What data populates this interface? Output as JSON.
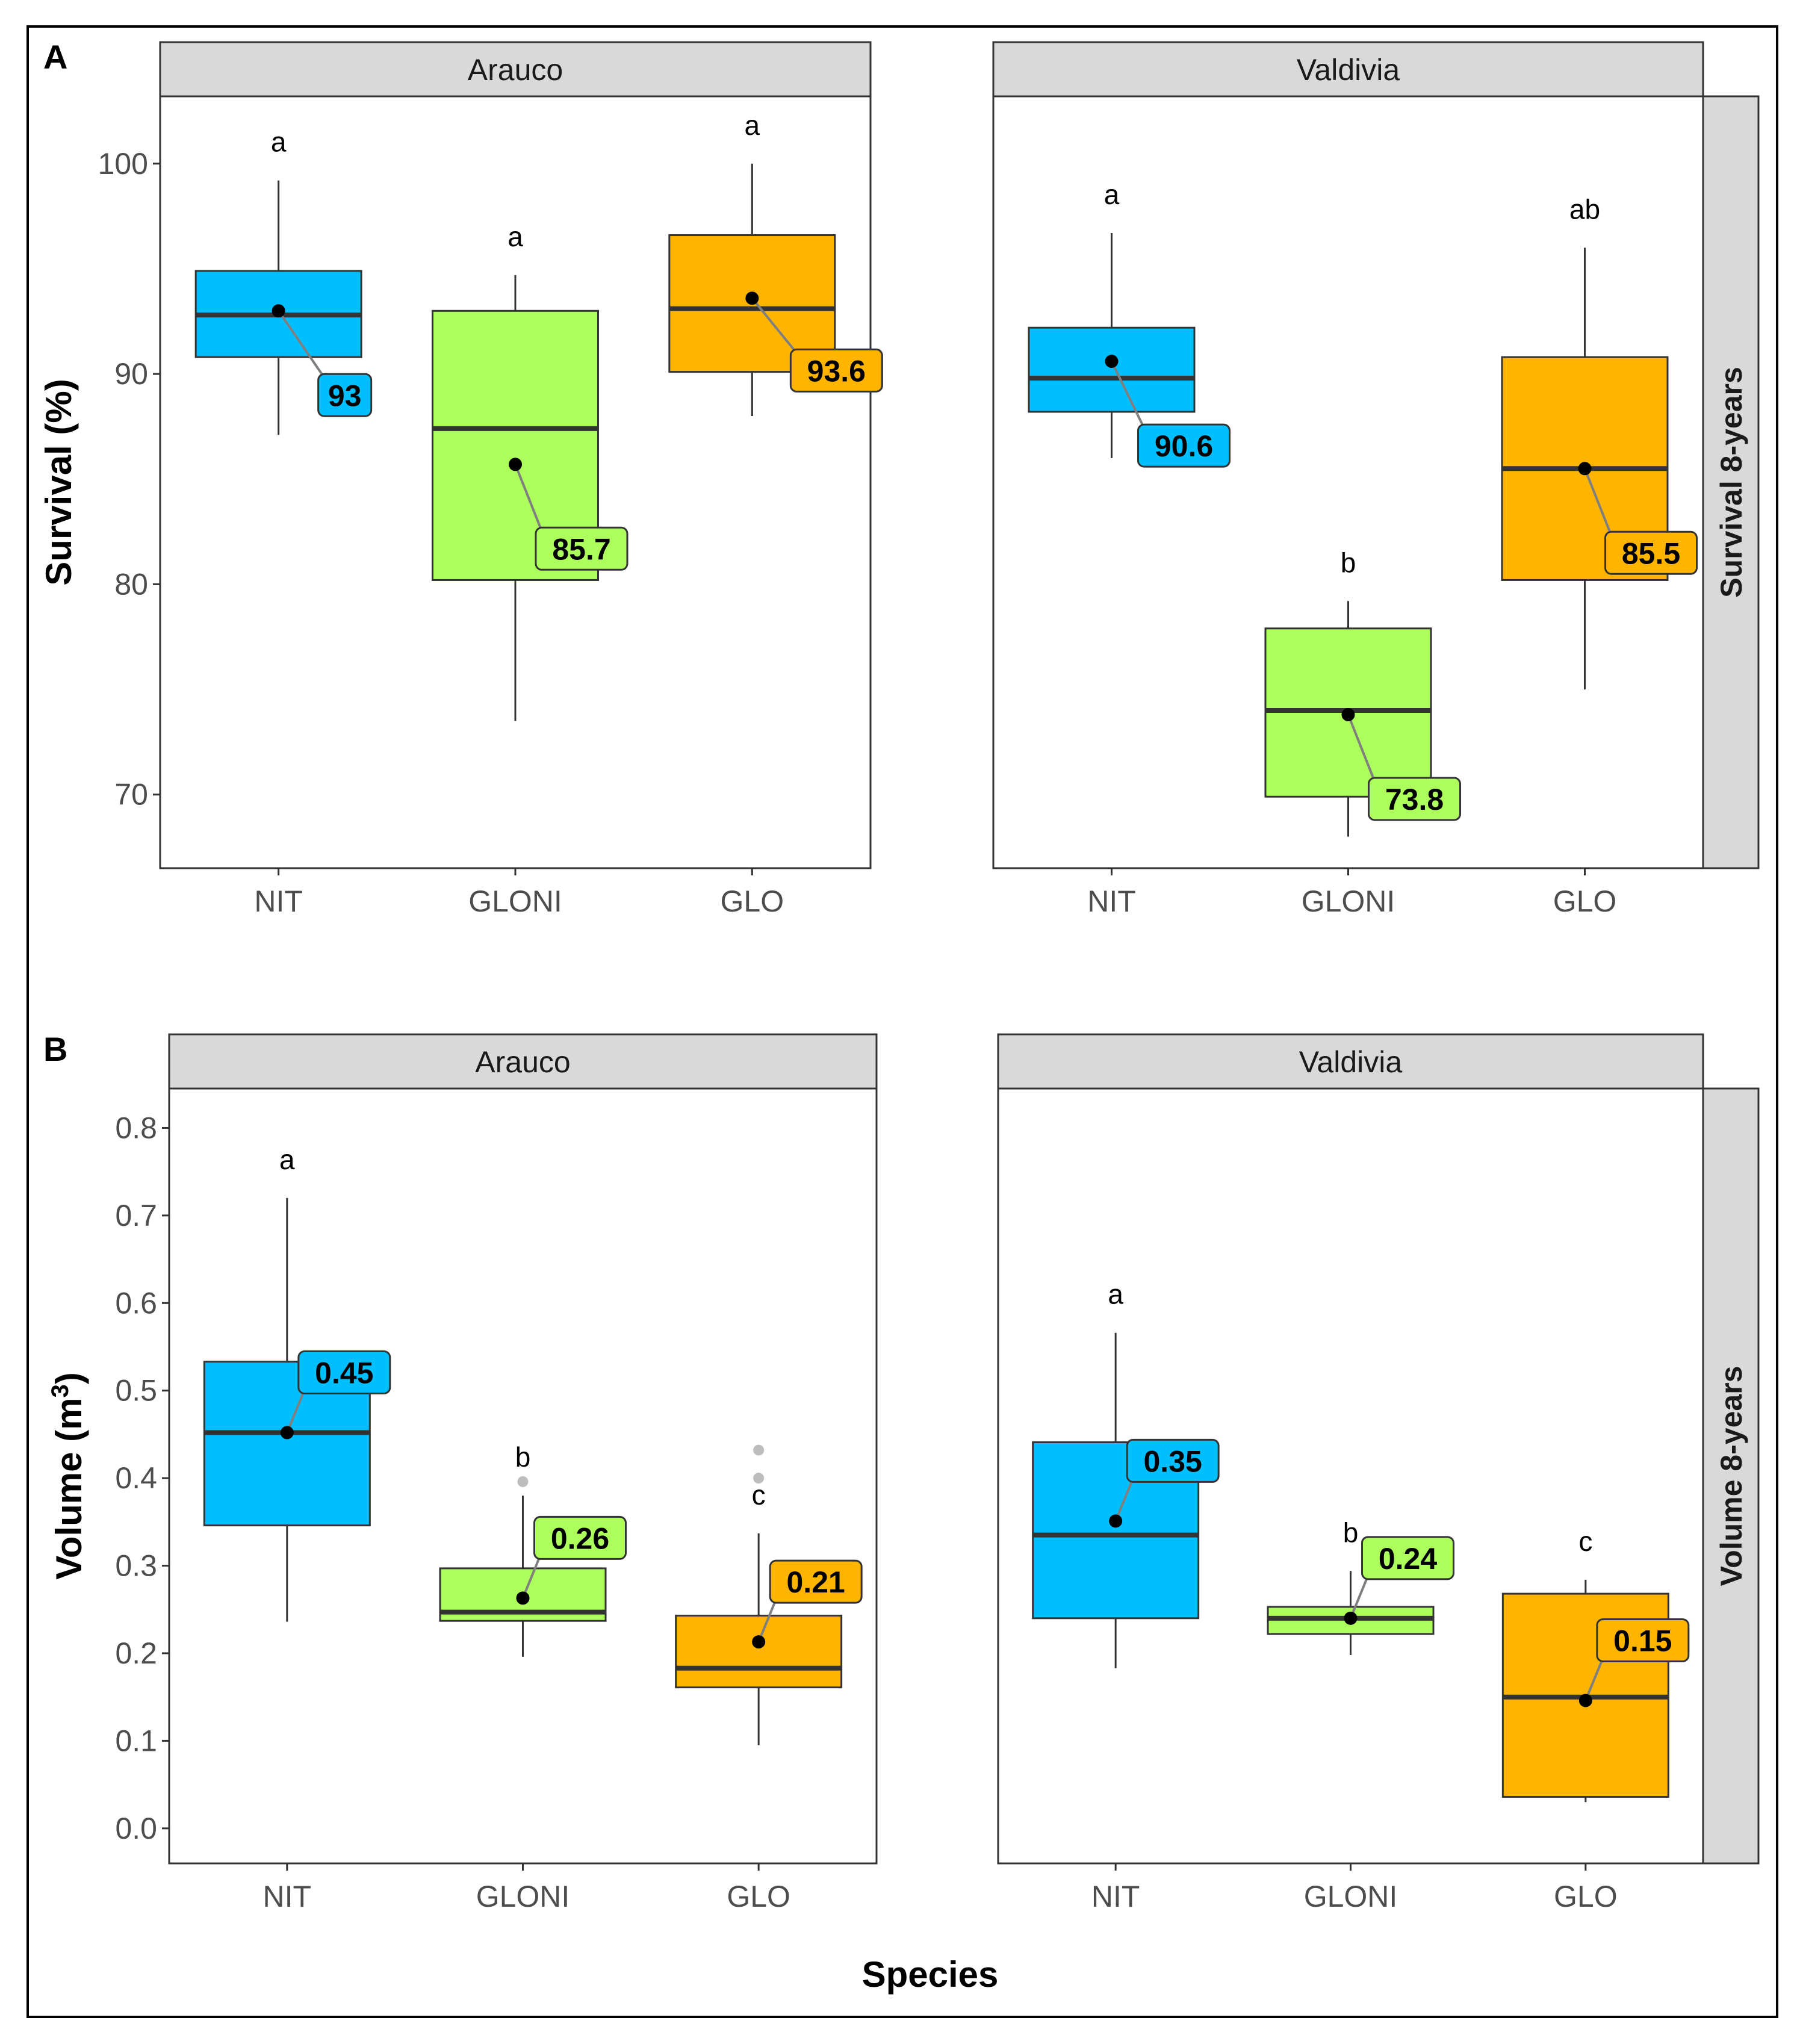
{
  "figure": {
    "x_axis_title": "Species"
  },
  "chart_data": [
    {
      "type": "boxplot",
      "panel": "A",
      "facet": "Arauco",
      "row_strip": "",
      "ylabel": "Survival (%)",
      "ylim": [
        66.5,
        103.2
      ],
      "yticks": [
        70,
        80,
        90,
        100
      ],
      "categories": [
        "NIT",
        "GLONI",
        "GLO"
      ],
      "colors": [
        "#00BFFF",
        "#ADFF5C",
        "#FFB500"
      ],
      "boxes": [
        {
          "whisker_low": 87.1,
          "q1": 90.8,
          "median": 92.8,
          "q3": 94.9,
          "whisker_high": 99.2,
          "outliers": [],
          "mean": 93.0,
          "mean_label": "93",
          "sig": "a"
        },
        {
          "whisker_low": 73.5,
          "q1": 80.2,
          "median": 87.4,
          "q3": 93.0,
          "whisker_high": 94.7,
          "outliers": [],
          "mean": 85.7,
          "mean_label": "85.7",
          "sig": "a"
        },
        {
          "whisker_low": 88.0,
          "q1": 90.1,
          "median": 93.1,
          "q3": 96.6,
          "whisker_high": 100.0,
          "outliers": [],
          "mean": 93.6,
          "mean_label": "93.6",
          "sig": "a"
        }
      ]
    },
    {
      "type": "boxplot",
      "panel": "",
      "facet": "Valdivia",
      "row_strip": "Survival 8-years",
      "ylabel": "",
      "ylim": [
        66.5,
        103.2
      ],
      "yticks": [],
      "categories": [
        "NIT",
        "GLONI",
        "GLO"
      ],
      "colors": [
        "#00BFFF",
        "#ADFF5C",
        "#FFB500"
      ],
      "boxes": [
        {
          "whisker_low": 86.0,
          "q1": 88.2,
          "median": 89.8,
          "q3": 92.2,
          "whisker_high": 96.7,
          "outliers": [],
          "mean": 90.6,
          "mean_label": "90.6",
          "sig": "a"
        },
        {
          "whisker_low": 68.0,
          "q1": 69.9,
          "median": 74.0,
          "q3": 77.9,
          "whisker_high": 79.2,
          "outliers": [],
          "mean": 73.8,
          "mean_label": "73.8",
          "sig": "b"
        },
        {
          "whisker_low": 75.0,
          "q1": 80.2,
          "median": 85.5,
          "q3": 90.8,
          "whisker_high": 96.0,
          "outliers": [],
          "mean": 85.5,
          "mean_label": "85.5",
          "sig": "ab"
        }
      ]
    },
    {
      "type": "boxplot",
      "panel": "B",
      "facet": "Arauco",
      "row_strip": "",
      "ylabel": "Volume (m",
      "ylabel_sup": "3",
      "ylabel_end": ")",
      "ylim": [
        -0.04,
        0.845
      ],
      "yticks": [
        "0.0",
        "0.1",
        "0.2",
        "0.3",
        "0.4",
        "0.5",
        "0.6",
        "0.7",
        "0.8"
      ],
      "categories": [
        "NIT",
        "GLONI",
        "GLO"
      ],
      "colors": [
        "#00BFFF",
        "#ADFF5C",
        "#FFB500"
      ],
      "boxes": [
        {
          "whisker_low": 0.236,
          "q1": 0.346,
          "median": 0.452,
          "q3": 0.533,
          "whisker_high": 0.72,
          "outliers": [],
          "mean": 0.452,
          "mean_label": "0.45",
          "sig": "a"
        },
        {
          "whisker_low": 0.196,
          "q1": 0.237,
          "median": 0.247,
          "q3": 0.297,
          "whisker_high": 0.38,
          "outliers": [
            0.396
          ],
          "mean": 0.263,
          "mean_label": "0.26",
          "sig": "b"
        },
        {
          "whisker_low": 0.095,
          "q1": 0.161,
          "median": 0.183,
          "q3": 0.243,
          "whisker_high": 0.337,
          "outliers": [
            0.4,
            0.432
          ],
          "mean": 0.213,
          "mean_label": "0.21",
          "sig": "c"
        }
      ]
    },
    {
      "type": "boxplot",
      "panel": "",
      "facet": "Valdivia",
      "row_strip": "Volume 8-years",
      "ylabel": "",
      "ylim": [
        -0.04,
        0.845
      ],
      "yticks": [],
      "categories": [
        "NIT",
        "GLONI",
        "GLO"
      ],
      "colors": [
        "#00BFFF",
        "#ADFF5C",
        "#FFB500"
      ],
      "boxes": [
        {
          "whisker_low": 0.183,
          "q1": 0.24,
          "median": 0.335,
          "q3": 0.441,
          "whisker_high": 0.566,
          "outliers": [],
          "mean": 0.351,
          "mean_label": "0.35",
          "sig": "a"
        },
        {
          "whisker_low": 0.198,
          "q1": 0.222,
          "median": 0.24,
          "q3": 0.253,
          "whisker_high": 0.294,
          "outliers": [],
          "mean": 0.24,
          "mean_label": "0.24",
          "sig": "b"
        },
        {
          "whisker_low": 0.03,
          "q1": 0.036,
          "median": 0.15,
          "q3": 0.268,
          "whisker_high": 0.284,
          "outliers": [],
          "mean": 0.146,
          "mean_label": "0.15",
          "sig": "c"
        }
      ]
    }
  ]
}
